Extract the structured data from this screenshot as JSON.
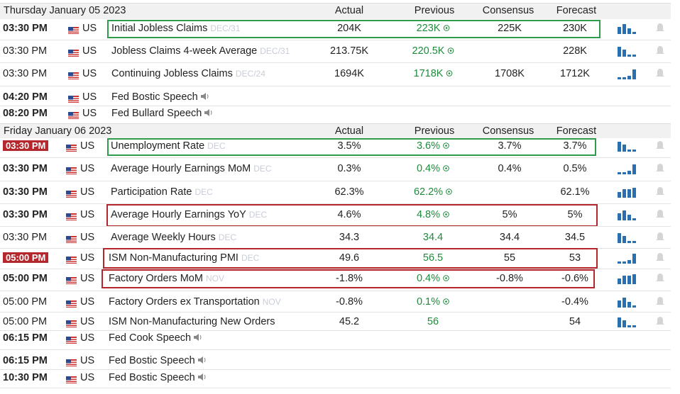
{
  "days": [
    {
      "header": "Thursday January 05 2023",
      "columns": {
        "actual": "Actual",
        "previous": "Previous",
        "consensus": "Consensus",
        "forecast": "Forecast"
      },
      "rows": [
        {
          "time": "03:30 PM",
          "country": "US",
          "event": "Initial Jobless Claims",
          "period": "DEC/31",
          "actual": "204K",
          "previous": "223K",
          "consensus": "225K",
          "forecast": "230K",
          "bold_time": true,
          "box": "green",
          "revised": true
        },
        {
          "time": "03:30 PM",
          "country": "US",
          "event": "Jobless Claims 4-week Average",
          "period": "DEC/31",
          "actual": "213.75K",
          "previous": "220.5K",
          "forecast": "228K",
          "revised": true
        },
        {
          "time": "03:30 PM",
          "country": "US",
          "event": "Continuing Jobless Claims",
          "period": "DEC/24",
          "actual": "1694K",
          "previous": "1718K",
          "consensus": "1708K",
          "forecast": "1712K",
          "revised": true
        },
        {
          "time": "04:20 PM",
          "country": "US",
          "event": "Fed Bostic Speech",
          "bold_time": true,
          "speech": true
        },
        {
          "time": "08:20 PM",
          "country": "US",
          "event": "Fed Bullard Speech",
          "bold_time": true,
          "speech": true
        }
      ]
    },
    {
      "header": "Friday January 06 2023",
      "columns": {
        "actual": "Actual",
        "previous": "Previous",
        "consensus": "Consensus",
        "forecast": "Forecast"
      },
      "rows": [
        {
          "time": "03:30 PM",
          "country": "US",
          "event": "Unemployment Rate",
          "period": "DEC",
          "actual": "3.5%",
          "previous": "3.6%",
          "consensus": "3.7%",
          "forecast": "3.7%",
          "time_highlight": true,
          "box": "green",
          "revised": true
        },
        {
          "time": "03:30 PM",
          "country": "US",
          "event": "Average Hourly Earnings MoM",
          "period": "DEC",
          "actual": "0.3%",
          "previous": "0.4%",
          "consensus": "0.4%",
          "forecast": "0.5%",
          "bold_time": true,
          "revised": true
        },
        {
          "time": "03:30 PM",
          "country": "US",
          "event": "Participation Rate",
          "period": "DEC",
          "actual": "62.3%",
          "previous": "62.2%",
          "forecast": "62.1%",
          "bold_time": true,
          "revised": true
        },
        {
          "time": "03:30 PM",
          "country": "US",
          "event": "Average Hourly Earnings YoY",
          "period": "DEC",
          "actual": "4.6%",
          "previous": "4.8%",
          "consensus": "5%",
          "forecast": "5%",
          "bold_time": true,
          "box": "red",
          "revised": true
        },
        {
          "time": "03:30 PM",
          "country": "US",
          "event": "Average Weekly Hours",
          "period": "DEC",
          "actual": "34.3",
          "previous": "34.4",
          "consensus": "34.4",
          "forecast": "34.5"
        },
        {
          "time": "05:00 PM",
          "country": "US",
          "event": "ISM Non-Manufacturing PMI",
          "period": "DEC",
          "actual": "49.6",
          "previous": "56.5",
          "consensus": "55",
          "forecast": "53",
          "time_highlight": true,
          "box": "red"
        },
        {
          "time": "05:00 PM",
          "country": "US",
          "event": "Factory Orders MoM",
          "period": "NOV",
          "actual": "-1.8%",
          "previous": "0.4%",
          "consensus": "-0.8%",
          "forecast": "-0.6%",
          "bold_time": true,
          "box": "red",
          "revised": true
        },
        {
          "time": "05:00 PM",
          "country": "US",
          "event": "Factory Orders ex Transportation",
          "period": "NOV",
          "actual": "-0.8%",
          "previous": "0.1%",
          "forecast": "-0.4%",
          "revised": true
        },
        {
          "time": "05:00 PM",
          "country": "US",
          "event": "ISM Non-Manufacturing New Orders",
          "actual": "45.2",
          "previous": "56",
          "forecast": "54"
        },
        {
          "time": "06:15 PM",
          "country": "US",
          "event": "Fed Cook Speech",
          "bold_time": true,
          "speech": true
        },
        {
          "time": "06:15 PM",
          "country": "US",
          "event": "Fed Bostic Speech",
          "bold_time": true,
          "speech": true
        },
        {
          "time": "10:30 PM",
          "country": "US",
          "event": "Fed Bostic Speech",
          "bold_time": true,
          "speech": true
        }
      ]
    }
  ]
}
